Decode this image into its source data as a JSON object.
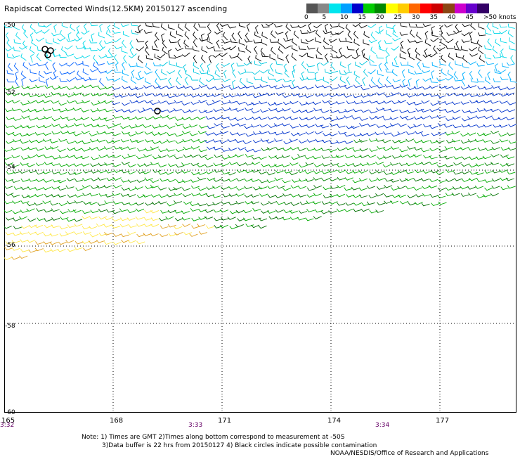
{
  "title": "Rapidscat Corrected Winds(12.5KM) 20150127 ascending",
  "legend": {
    "colors": [
      "#555555",
      "#888888",
      "#00e5ee",
      "#00a0ff",
      "#0000cc",
      "#00cc00",
      "#008800",
      "#ffff00",
      "#ffcc00",
      "#ff6600",
      "#ff0000",
      "#cc0000",
      "#8b4513",
      "#cc00cc",
      "#6600cc",
      "#330066"
    ],
    "labels": [
      "0",
      "5",
      "10",
      "15",
      "20",
      "25",
      "30",
      "35",
      "40",
      "45",
      ">50 knots"
    ]
  },
  "lat_labels": [
    "-50",
    "-52",
    "-54",
    "-56",
    "-58",
    "-60"
  ],
  "lon_labels": [
    "165",
    "168",
    "171",
    "174",
    "177"
  ],
  "time_labels": [
    "3:32",
    "3:33",
    "3:34"
  ],
  "notes": {
    "line1": "Note: 1) Times are GMT 2)Times along bottom correspond to measurement at -50S",
    "line2": "3)Data buffer is 22 hrs from 20150127 4) Black circles indicate possible contamination",
    "line3": "NOAA/NESDIS/Office of Research and Applications"
  }
}
